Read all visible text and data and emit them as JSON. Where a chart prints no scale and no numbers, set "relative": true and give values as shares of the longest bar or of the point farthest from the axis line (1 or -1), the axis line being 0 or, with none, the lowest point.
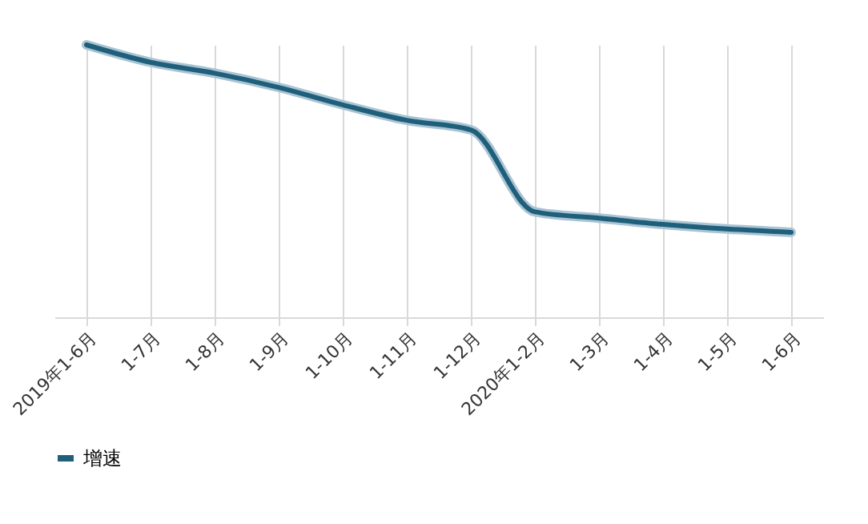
{
  "chart_data": {
    "type": "line",
    "relative": true,
    "categories": [
      "2019年1-6月",
      "1-7月",
      "1-8月",
      "1-9月",
      "1-10月",
      "1-11月",
      "1-12月",
      "2020年1-2月",
      "1-3月",
      "1-4月",
      "1-5月",
      "1-6月"
    ],
    "series": [
      {
        "name": "增速",
        "color": "#1f5f7a",
        "values": [
          1,
          0.936,
          0.896,
          0.844,
          0.78,
          0.723,
          0.688,
          0.387,
          0.364,
          0.341,
          0.324,
          0.312
        ]
      }
    ],
    "grid": "x",
    "legend": "bottom"
  }
}
